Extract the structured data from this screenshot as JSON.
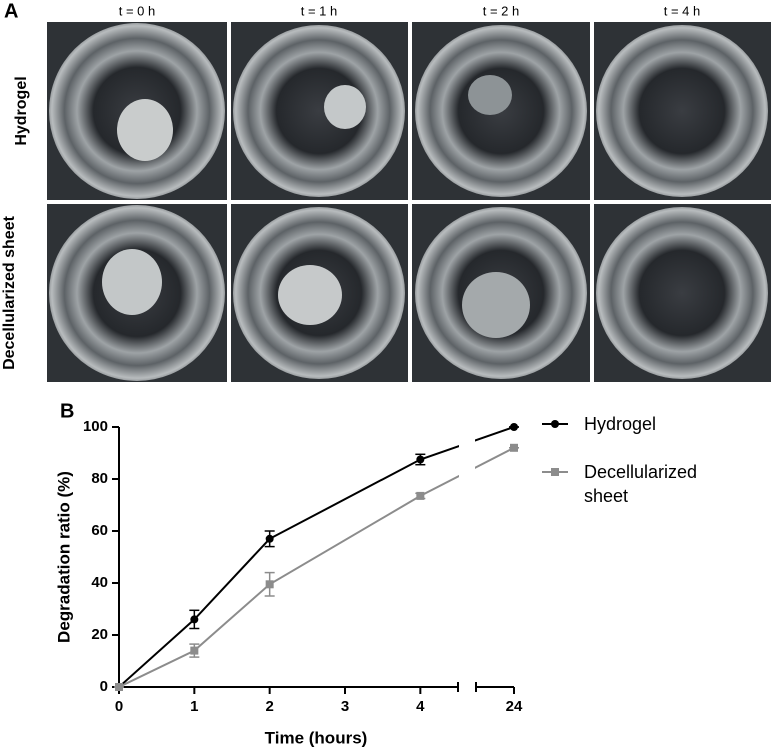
{
  "panel_a": {
    "label": "A",
    "columns": [
      "t = 0 h",
      "t = 1 h",
      "t = 2 h",
      "t = 4 h"
    ],
    "rows": [
      "Hydrogel",
      "Decellularized sheet"
    ]
  },
  "chart_data": {
    "type": "line",
    "panel_label": "B",
    "xlabel": "Time (hours)",
    "ylabel": "Degradation ratio (%)",
    "x": [
      0,
      1,
      2,
      4,
      24
    ],
    "xlim": [
      [
        0,
        4.5
      ],
      [
        23.5,
        24
      ]
    ],
    "xticks": [
      0,
      1,
      2,
      3,
      4,
      24
    ],
    "ylim": [
      0,
      100
    ],
    "yticks": [
      0,
      20,
      40,
      60,
      80,
      100
    ],
    "legend": "right",
    "series": [
      {
        "name": "Hydrogel",
        "color": "#000000",
        "marker": "circle",
        "values": [
          0,
          26,
          57,
          87.5,
          100
        ],
        "errors": [
          0,
          3.5,
          3,
          2,
          0
        ]
      },
      {
        "name": "Decellularized sheet",
        "color": "#8c8c8c",
        "marker": "square",
        "values": [
          0,
          14,
          39.5,
          73.5,
          92
        ],
        "errors": [
          0,
          2.5,
          4.5,
          1,
          0
        ]
      }
    ]
  }
}
